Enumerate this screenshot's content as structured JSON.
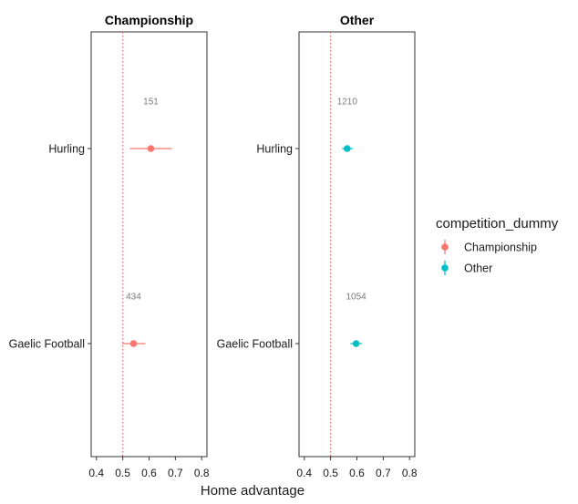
{
  "chart_data": {
    "type": "scatter",
    "subtype": "dot-and-errorbar, faceted",
    "xlabel": "Home advantage",
    "xlim": [
      0.38,
      0.82
    ],
    "xticks": [
      "0.4",
      "0.5",
      "0.6",
      "0.7",
      "0.8"
    ],
    "reference_line": {
      "x": 0.5,
      "style": "dotted",
      "color": "#d9534f"
    },
    "categories": [
      "Hurling",
      "Gaelic Football"
    ],
    "grid": false,
    "legend": {
      "title": "competition_dummy",
      "position": "right",
      "entries": [
        {
          "name": "Championship",
          "color": "#F8766D"
        },
        {
          "name": "Other",
          "color": "#00BFC4"
        }
      ]
    },
    "facets": [
      {
        "title": "Championship",
        "color": "#F8766D",
        "points": [
          {
            "category": "Hurling",
            "x": 0.607,
            "lower": 0.527,
            "upper": 0.687,
            "n_label": "151",
            "n_x": 0.607
          },
          {
            "category": "Gaelic Football",
            "x": 0.541,
            "lower": 0.499,
            "upper": 0.586,
            "n_label": "434",
            "n_x": 0.541
          }
        ]
      },
      {
        "title": "Other",
        "color": "#00BFC4",
        "points": [
          {
            "category": "Hurling",
            "x": 0.563,
            "lower": 0.543,
            "upper": 0.584,
            "n_label": "1210",
            "n_x": 0.563
          },
          {
            "category": "Gaelic Football",
            "x": 0.597,
            "lower": 0.575,
            "upper": 0.619,
            "n_label": "1054",
            "n_x": 0.597
          }
        ]
      }
    ]
  }
}
